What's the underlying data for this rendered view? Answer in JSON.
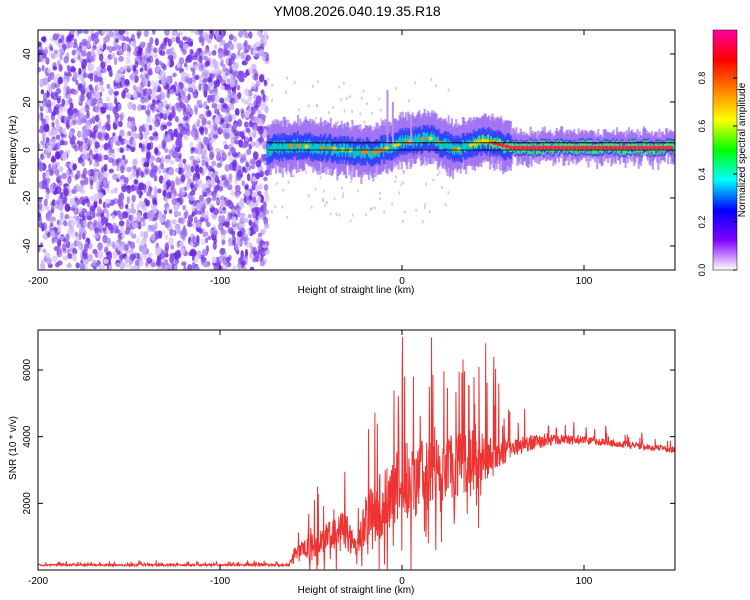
{
  "title": "YM08.2026.040.19.35.R18",
  "chart_data": [
    {
      "type": "heatmap",
      "name": "spectrogram",
      "xlabel": "Height of straight line (km)",
      "ylabel": "Frequency (Hz)",
      "xlim": [
        -200,
        150
      ],
      "ylim": [
        -50,
        50
      ],
      "xticks": [
        -200,
        -100,
        0,
        100
      ],
      "xtick_labels": [
        "-200",
        "-100",
        "0",
        "100"
      ],
      "yticks": [
        -40,
        -20,
        0,
        20,
        40
      ],
      "ytick_labels": [
        "-40",
        "-20",
        "0",
        "20",
        "40"
      ],
      "noise_region_x": [
        -200,
        -74
      ],
      "signal_onset_x": -74,
      "signal_center_hz": [
        {
          "x": -74,
          "hz": 0
        },
        {
          "x": -60,
          "hz": 2
        },
        {
          "x": -45,
          "hz": 1
        },
        {
          "x": -30,
          "hz": 0
        },
        {
          "x": -15,
          "hz": -1
        },
        {
          "x": 0,
          "hz": 3
        },
        {
          "x": 15,
          "hz": 5
        },
        {
          "x": 30,
          "hz": 0
        },
        {
          "x": 45,
          "hz": 4
        },
        {
          "x": 60,
          "hz": 1
        },
        {
          "x": 80,
          "hz": 1
        },
        {
          "x": 100,
          "hz": 1
        },
        {
          "x": 150,
          "hz": 1
        }
      ],
      "reference_lines_hz": [
        0,
        3
      ],
      "colorbar": {
        "label": "Normalized spectral amplitude",
        "range": [
          0,
          1
        ],
        "ticks": [
          0.0,
          0.2,
          0.4,
          0.6,
          0.8
        ],
        "tick_labels": [
          "0.0",
          "0.2",
          "0.4",
          "0.6",
          "0.8"
        ],
        "colors": [
          "#ffffff",
          "#8000ff",
          "#0000ff",
          "#00ffff",
          "#00ff00",
          "#ffff00",
          "#ff8000",
          "#ff0000",
          "#ff00a0"
        ]
      }
    },
    {
      "type": "line",
      "name": "snr",
      "xlabel": "Height of straight line (km)",
      "ylabel": "SNR (10 * v/v)",
      "xlim": [
        -200,
        150
      ],
      "ylim": [
        0,
        7200
      ],
      "xticks": [
        -200,
        -100,
        0,
        100
      ],
      "xtick_labels": [
        "-200",
        "-100",
        "0",
        "100"
      ],
      "yticks": [
        2000,
        4000,
        6000
      ],
      "ytick_labels": [
        "2000",
        "4000",
        "6000"
      ],
      "series": [
        {
          "name": "SNR",
          "color": "#ee3333",
          "envelope": [
            {
              "x": -200,
              "base": 150,
              "amp": 100
            },
            {
              "x": -62,
              "base": 150,
              "amp": 120
            },
            {
              "x": -60,
              "base": 400,
              "amp": 800
            },
            {
              "x": -45,
              "base": 800,
              "amp": 1600
            },
            {
              "x": -30,
              "base": 1200,
              "amp": 2200
            },
            {
              "x": -25,
              "base": 600,
              "amp": 600
            },
            {
              "x": -20,
              "base": 1500,
              "amp": 2500
            },
            {
              "x": -10,
              "base": 2000,
              "amp": 3500
            },
            {
              "x": 0,
              "base": 2600,
              "amp": 4200
            },
            {
              "x": 20,
              "base": 3000,
              "amp": 3200
            },
            {
              "x": 45,
              "base": 3400,
              "amp": 3000
            },
            {
              "x": 60,
              "base": 3700,
              "amp": 1000
            },
            {
              "x": 80,
              "base": 3900,
              "amp": 600
            },
            {
              "x": 100,
              "base": 3900,
              "amp": 400
            },
            {
              "x": 150,
              "base": 3600,
              "amp": 300
            }
          ]
        }
      ]
    }
  ]
}
